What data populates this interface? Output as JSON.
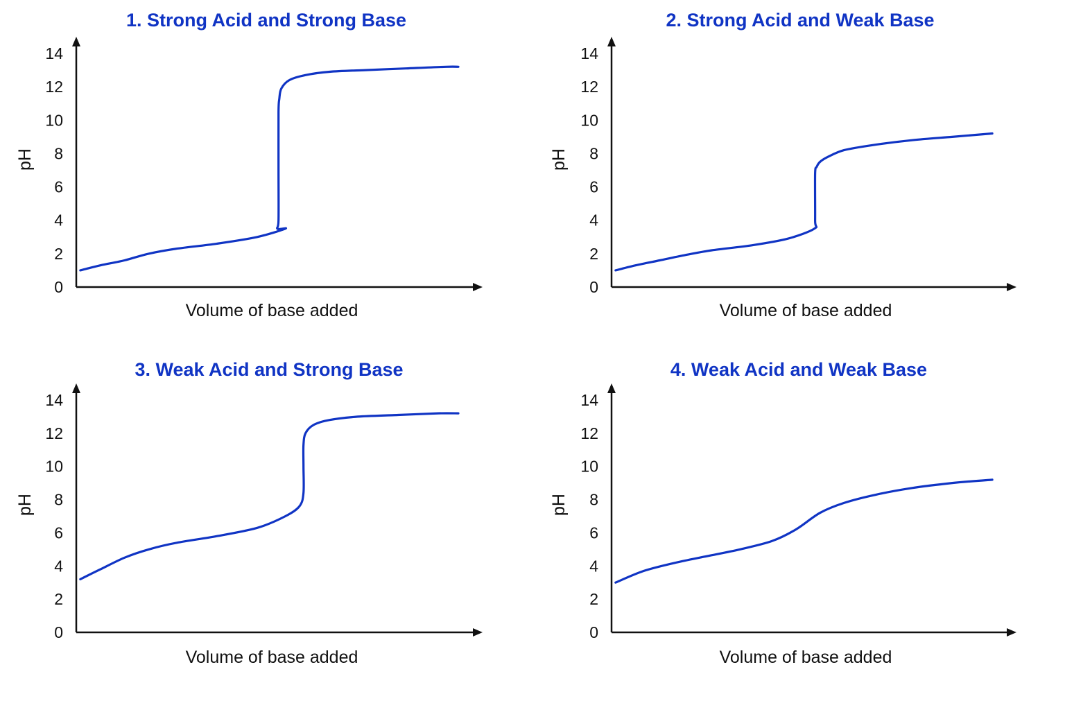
{
  "colors": {
    "curve": "#1034c4",
    "title": "#1034c4",
    "axis": "#111111",
    "background": "#ffffff"
  },
  "chart_data": [
    {
      "type": "line",
      "title": "1. Strong Acid and Strong Base",
      "xlabel": "Volume of base added",
      "ylabel": "pH",
      "ylim": [
        0,
        14
      ],
      "yticks": [
        0,
        2,
        4,
        6,
        8,
        10,
        12,
        14
      ],
      "xlim": [
        0,
        100
      ],
      "x_tick_labels": false,
      "grid": false,
      "series": [
        {
          "x": [
            1,
            6,
            12,
            18,
            25,
            35,
            45,
            52,
            50.0,
            50.3,
            50.3,
            50.3,
            50.5,
            51,
            53,
            57,
            63,
            72,
            82,
            92,
            95
          ],
          "y": [
            1.0,
            1.3,
            1.6,
            2.0,
            2.3,
            2.6,
            3.0,
            3.5,
            3.5,
            4.0,
            7.0,
            10.5,
            11.3,
            11.9,
            12.4,
            12.7,
            12.9,
            13.0,
            13.1,
            13.2,
            13.2
          ]
        }
      ]
    },
    {
      "type": "line",
      "title": "2. Strong Acid and Weak Base",
      "xlabel": "Volume of base added",
      "ylabel": "pH",
      "ylim": [
        0,
        14
      ],
      "yticks": [
        0,
        2,
        4,
        6,
        8,
        10,
        12,
        14
      ],
      "xlim": [
        0,
        100
      ],
      "x_tick_labels": false,
      "grid": false,
      "series": [
        {
          "x": [
            1,
            6,
            12,
            18,
            25,
            35,
            44,
            50.6,
            50.8,
            50.8,
            51.2,
            52,
            54,
            58,
            65,
            75,
            85,
            95
          ],
          "y": [
            1.0,
            1.3,
            1.6,
            1.9,
            2.2,
            2.5,
            2.9,
            3.5,
            4.0,
            6.8,
            7.2,
            7.5,
            7.8,
            8.2,
            8.5,
            8.8,
            9.0,
            9.2
          ]
        }
      ]
    },
    {
      "type": "line",
      "title": "3.  Weak Acid and Strong Base",
      "xlabel": "Volume of base added",
      "ylabel": "pH",
      "ylim": [
        0,
        14
      ],
      "yticks": [
        0,
        2,
        4,
        6,
        8,
        10,
        12,
        14
      ],
      "xlim": [
        0,
        100
      ],
      "x_tick_labels": false,
      "grid": false,
      "series": [
        {
          "x": [
            1,
            6,
            12,
            18,
            25,
            35,
            45,
            52,
            55.5,
            56.5,
            56.5,
            56.5,
            57,
            59,
            63,
            70,
            80,
            90,
            95
          ],
          "y": [
            3.2,
            3.8,
            4.5,
            5.0,
            5.4,
            5.8,
            6.3,
            7.0,
            7.6,
            8.4,
            10.0,
            11.3,
            12.0,
            12.5,
            12.8,
            13.0,
            13.1,
            13.2,
            13.2
          ]
        }
      ]
    },
    {
      "type": "line",
      "title": "4. Weak Acid and Weak Base",
      "xlabel": "Volume of base added",
      "ylabel": "pH",
      "ylim": [
        0,
        14
      ],
      "yticks": [
        0,
        2,
        4,
        6,
        8,
        10,
        12,
        14
      ],
      "xlim": [
        0,
        100
      ],
      "x_tick_labels": false,
      "grid": false,
      "series": [
        {
          "x": [
            1,
            8,
            16,
            24,
            32,
            40,
            46,
            52,
            58,
            66,
            75,
            85,
            95
          ],
          "y": [
            3.0,
            3.7,
            4.2,
            4.6,
            5.0,
            5.5,
            6.2,
            7.2,
            7.8,
            8.3,
            8.7,
            9.0,
            9.2
          ]
        }
      ]
    }
  ]
}
